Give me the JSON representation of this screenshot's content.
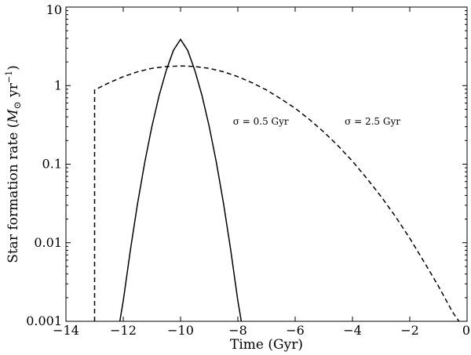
{
  "chart_data": {
    "type": "line",
    "xlabel": "Time (Gyr)",
    "ylabel_parts": {
      "prefix": "Star formation rate (",
      "msun_M": "M",
      "msun_sub": "⊙",
      "unit_mid": " yr",
      "unit_exp": "−1",
      "suffix": ")"
    },
    "xlim": [
      -14,
      0
    ],
    "ylim": [
      0.001,
      10
    ],
    "yscale": "log",
    "grid": false,
    "x_ticks": [
      {
        "value": -14,
        "label": "−14"
      },
      {
        "value": -12,
        "label": "−12"
      },
      {
        "value": -10,
        "label": "−10"
      },
      {
        "value": -8,
        "label": "−8"
      },
      {
        "value": -6,
        "label": "−6"
      },
      {
        "value": -4,
        "label": "−4"
      },
      {
        "value": -2,
        "label": "−2"
      },
      {
        "value": 0,
        "label": "0"
      }
    ],
    "y_ticks": [
      {
        "value": 0.001,
        "label": "0.001"
      },
      {
        "value": 0.01,
        "label": "0.01"
      },
      {
        "value": 0.1,
        "label": "0.1"
      },
      {
        "value": 1,
        "label": "1"
      },
      {
        "value": 10,
        "label": "10"
      }
    ],
    "series": [
      {
        "line_style": "solid",
        "x": [
          -12.12,
          -12.0,
          -11.75,
          -11.5,
          -11.25,
          -11.0,
          -10.75,
          -10.5,
          -10.25,
          -10.0,
          -9.75,
          -9.5,
          -9.25,
          -9.0,
          -8.75,
          -8.5,
          -8.25,
          -8.0,
          -7.88
        ],
        "y": [
          0.001,
          0.00182,
          0.0081,
          0.0316,
          0.1053,
          0.3022,
          0.7425,
          1.558,
          2.806,
          3.882,
          2.806,
          1.558,
          0.7425,
          0.3022,
          0.1053,
          0.0316,
          0.0081,
          0.00182,
          0.001
        ]
      },
      {
        "line_style": "dashed",
        "x": [
          -13.0,
          -13.0,
          -12.5,
          -12.0,
          -11.5,
          -11.0,
          -10.5,
          -10.0,
          -9.5,
          -9.0,
          -8.5,
          -8.0,
          -7.5,
          -7.0,
          -6.5,
          -6.0,
          -5.5,
          -5.0,
          -4.5,
          -4.0,
          -3.5,
          -3.0,
          -2.5,
          -2.0,
          -1.5,
          -1.0,
          -0.5,
          -0.28
        ],
        "y": [
          0.001,
          0.88,
          1.086,
          1.3,
          1.5,
          1.66,
          1.75,
          1.78,
          1.75,
          1.66,
          1.5,
          1.3,
          1.086,
          0.88,
          0.68,
          0.515,
          0.37,
          0.257,
          0.171,
          0.109,
          0.066,
          0.0387,
          0.0216,
          0.0114,
          0.0057,
          0.0028,
          0.0013,
          0.001
        ]
      }
    ],
    "annotations": [
      {
        "text": "σ = 0.5 Gyr",
        "x": -7.2,
        "y": 0.32
      },
      {
        "text": "σ = 2.5 Gyr",
        "x": -3.3,
        "y": 0.32
      }
    ]
  }
}
